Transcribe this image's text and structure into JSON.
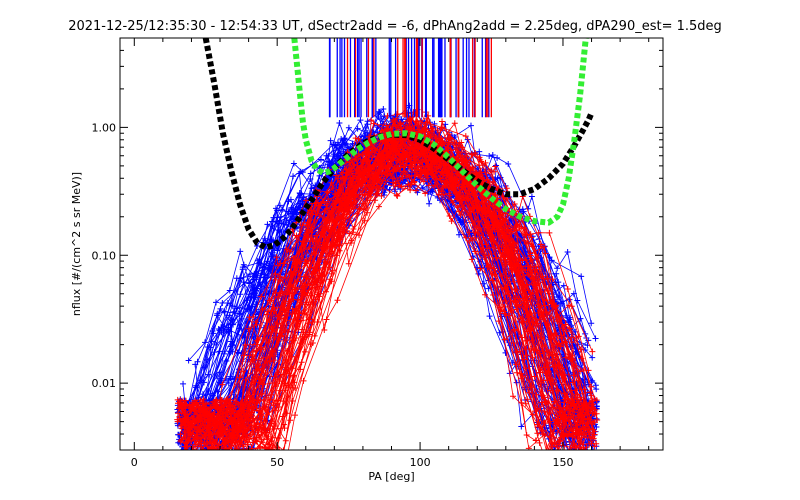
{
  "chart_data": {
    "type": "scatter",
    "title": "2021-12-25/12:35:30 - 12:54:33 UT, dSectr2add = -6, dPhAng2add = 2.25deg, dPA290_est=   1.5deg",
    "xlabel": "PA [deg]",
    "ylabel": "nflux [#/(cm^2 s sr MeV)]",
    "x_range": [
      -5,
      185
    ],
    "y_range": [
      0.003,
      5.0
    ],
    "y_scale": "log",
    "x_ticks": [
      "0",
      "50",
      "100",
      "150"
    ],
    "x_tick_values": [
      0,
      50,
      100,
      150
    ],
    "y_ticks": [
      "0.01",
      "0.10",
      "1.00"
    ],
    "y_tick_values": [
      0.01,
      0.1,
      1.0
    ],
    "grid": false,
    "colors": {
      "blue": "#0000ff",
      "red": "#ff0000",
      "black": "#000000",
      "green": "#33ee33"
    },
    "fits": [
      {
        "name": "",
        "color": "#000000",
        "x": [
          25,
          28,
          31,
          34,
          37,
          40,
          43,
          46,
          49,
          52,
          55,
          58,
          62,
          66,
          70,
          75,
          80,
          85,
          90,
          95,
          100,
          105,
          110,
          115,
          120,
          125,
          130,
          135,
          140,
          145,
          150,
          154,
          157,
          159,
          160
        ],
        "y": [
          5.0,
          2.2,
          0.9,
          0.45,
          0.25,
          0.16,
          0.125,
          0.115,
          0.12,
          0.135,
          0.16,
          0.2,
          0.27,
          0.37,
          0.48,
          0.62,
          0.75,
          0.84,
          0.88,
          0.87,
          0.8,
          0.68,
          0.56,
          0.46,
          0.38,
          0.33,
          0.3,
          0.3,
          0.33,
          0.4,
          0.52,
          0.72,
          0.95,
          1.15,
          1.3
        ]
      },
      {
        "name": "",
        "color": "#33ee33",
        "x": [
          56,
          57,
          58,
          59,
          60,
          62,
          64,
          66,
          68,
          70,
          74,
          78,
          82,
          86,
          90,
          95,
          100,
          105,
          110,
          115,
          120,
          125,
          130,
          135,
          140,
          145,
          148,
          150,
          152,
          154,
          156,
          158
        ],
        "y": [
          5.0,
          3.0,
          1.8,
          1.1,
          0.8,
          0.55,
          0.47,
          0.44,
          0.45,
          0.48,
          0.57,
          0.67,
          0.76,
          0.84,
          0.89,
          0.9,
          0.85,
          0.73,
          0.58,
          0.45,
          0.35,
          0.28,
          0.23,
          0.2,
          0.185,
          0.18,
          0.2,
          0.25,
          0.4,
          0.8,
          1.8,
          5.0
        ]
      }
    ],
    "series": [
      {
        "name": "",
        "color": "#0000ff",
        "seed": 11,
        "count": 90,
        "peak_x": 93,
        "width": 20
      },
      {
        "name": "",
        "color": "#ff0000",
        "seed": 29,
        "count": 70,
        "peak_x": 97,
        "width": 17
      }
    ],
    "vlines": {
      "y_from": 1.2,
      "y_to": 5.0,
      "x_min": 68,
      "x_max": 126,
      "blue_count": 55,
      "red_count": 20
    }
  }
}
